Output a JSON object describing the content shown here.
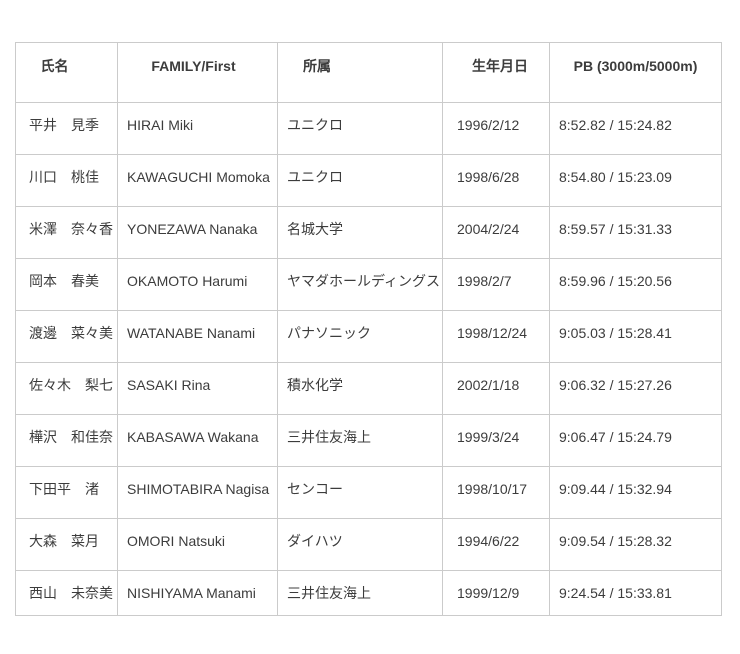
{
  "colors": {
    "background": "#ffffff",
    "border": "#cbcbcb",
    "text": "#3c3c3c"
  },
  "table": {
    "columns": [
      "氏名",
      "FAMILY/First",
      "所属",
      "生年月日",
      "PB (3000m/5000m)"
    ],
    "rows": [
      {
        "name": "平井　見季",
        "family_first": "HIRAI Miki",
        "team": "ユニクロ",
        "birthdate": "1996/2/12",
        "pb": "8:52.82 / 15:24.82"
      },
      {
        "name": "川口　桃佳",
        "family_first": "KAWAGUCHI Momoka",
        "team": "ユニクロ",
        "birthdate": "1998/6/28",
        "pb": "8:54.80 / 15:23.09"
      },
      {
        "name": "米澤　奈々香",
        "family_first": "YONEZAWA Nanaka",
        "team": "名城大学",
        "birthdate": "2004/2/24",
        "pb": "8:59.57 / 15:31.33"
      },
      {
        "name": "岡本　春美",
        "family_first": "OKAMOTO Harumi",
        "team": "ヤマダホールディングス",
        "birthdate": "1998/2/7",
        "pb": "8:59.96 / 15:20.56"
      },
      {
        "name": "渡邊　菜々美",
        "family_first": "WATANABE Nanami",
        "team": "パナソニック",
        "birthdate": "1998/12/24",
        "pb": "9:05.03 / 15:28.41"
      },
      {
        "name": "佐々木　梨七",
        "family_first": "SASAKI Rina",
        "team": "積水化学",
        "birthdate": "2002/1/18",
        "pb": "9:06.32 / 15:27.26"
      },
      {
        "name": "樺沢　和佳奈",
        "family_first": "KABASAWA Wakana",
        "team": "三井住友海上",
        "birthdate": "1999/3/24",
        "pb": "9:06.47 / 15:24.79"
      },
      {
        "name": "下田平　渚",
        "family_first": "SHIMOTABIRA Nagisa",
        "team": "センコー",
        "birthdate": "1998/10/17",
        "pb": "9:09.44 / 15:32.94"
      },
      {
        "name": "大森　菜月",
        "family_first": "OMORI Natsuki",
        "team": "ダイハツ",
        "birthdate": "1994/6/22",
        "pb": "9:09.54 / 15:28.32"
      },
      {
        "name": "西山　未奈美",
        "family_first": "NISHIYAMA Manami",
        "team": "三井住友海上",
        "birthdate": "1999/12/9",
        "pb": "9:24.54 / 15:33.81"
      }
    ]
  }
}
